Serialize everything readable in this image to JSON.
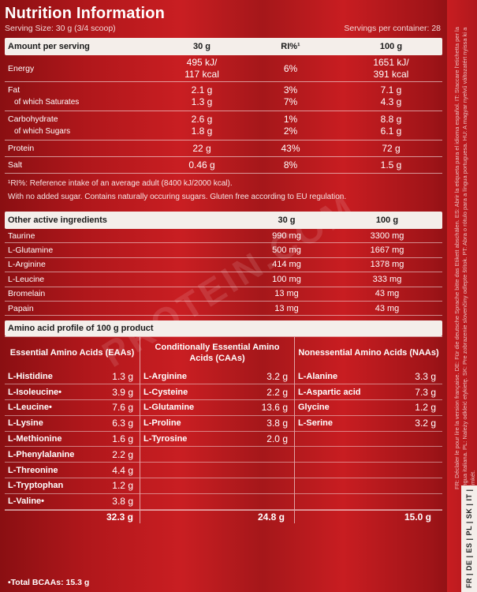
{
  "title": "Nutrition Information",
  "serving_size": "Serving Size: 30 g (3/4 scoop)",
  "servings_per_container": "Servings per container: 28",
  "nutrition": {
    "headers": [
      "Amount per serving",
      "30 g",
      "RI%¹",
      "100 g"
    ],
    "rows": [
      {
        "name": "Energy",
        "v30a": "495 kJ/",
        "v30b": "117 kcal",
        "ri": "6%",
        "v100a": "1651 kJ/",
        "v100b": "391 kcal"
      },
      {
        "name": "Fat",
        "v30": "2.1 g",
        "ri": "3%",
        "v100": "7.1 g",
        "sub": "of which Saturates",
        "sub30": "1.3 g",
        "subri": "7%",
        "sub100": "4.3 g"
      },
      {
        "name": "Carbohydrate",
        "v30": "2.6 g",
        "ri": "1%",
        "v100": "8.8 g",
        "sub": "of which Sugars",
        "sub30": "1.8 g",
        "subri": "2%",
        "sub100": "6.1 g"
      },
      {
        "name": "Protein",
        "v30": "22 g",
        "ri": "43%",
        "v100": "72 g"
      },
      {
        "name": "Salt",
        "v30": "0.46 g",
        "ri": "8%",
        "v100": "1.5 g"
      }
    ],
    "footnote1": "¹RI%: Reference intake of an average adult (8400 kJ/2000 kcal).",
    "footnote2": "With no added sugar. Contains naturally occuring sugars. Gluten free according to EU regulation."
  },
  "other": {
    "headers": [
      "Other active ingredients",
      "30 g",
      "100 g"
    ],
    "rows": [
      {
        "name": "Taurine",
        "v30": "990 mg",
        "v100": "3300 mg"
      },
      {
        "name": "L-Glutamine",
        "v30": "500 mg",
        "v100": "1667 mg"
      },
      {
        "name": "L-Arginine",
        "v30": "414 mg",
        "v100": "1378 mg"
      },
      {
        "name": "L-Leucine",
        "v30": "100 mg",
        "v100": "333 mg"
      },
      {
        "name": "Bromelain",
        "v30": "13 mg",
        "v100": "43 mg"
      },
      {
        "name": "Papain",
        "v30": "13 mg",
        "v100": "43 mg"
      }
    ]
  },
  "amino": {
    "title": "Amino acid profile of 100 g product",
    "essential": {
      "header": "Essential Amino Acids (EAAs)",
      "rows": [
        {
          "name": "L-Histidine",
          "v": "1.3 g"
        },
        {
          "name": "L-Isoleucine•",
          "v": "3.9 g"
        },
        {
          "name": "L-Leucine•",
          "v": "7.6 g"
        },
        {
          "name": "L-Lysine",
          "v": "6.3 g"
        },
        {
          "name": "L-Methionine",
          "v": "1.6 g"
        },
        {
          "name": "L-Phenylalanine",
          "v": "2.2 g"
        },
        {
          "name": "L-Threonine",
          "v": "4.4 g"
        },
        {
          "name": "L-Tryptophan",
          "v": "1.2 g"
        },
        {
          "name": "L-Valine•",
          "v": "3.8 g"
        }
      ],
      "total": "32.3 g"
    },
    "conditional": {
      "header": "Conditionally Essential Amino Acids (CAAs)",
      "rows": [
        {
          "name": "L-Arginine",
          "v": "3.2 g"
        },
        {
          "name": "L-Cysteine",
          "v": "2.2 g"
        },
        {
          "name": "L-Glutamine",
          "v": "13.6 g"
        },
        {
          "name": "L-Proline",
          "v": "3.8 g"
        },
        {
          "name": "L-Tyrosine",
          "v": "2.0 g"
        }
      ],
      "total": "24.8 g"
    },
    "nonessential": {
      "header": "Nonessential Amino Acids (NAAs)",
      "rows": [
        {
          "name": "L-Alanine",
          "v": "3.3 g"
        },
        {
          "name": "L-Aspartic acid",
          "v": "7.3 g"
        },
        {
          "name": "Glycine",
          "v": "1.2 g"
        },
        {
          "name": "L-Serine",
          "v": "3.2 g"
        }
      ],
      "total": "15.0 g"
    },
    "bcaa_total": "•Total BCAAs: 15.3 g"
  },
  "side_text": "FR: Déclaler le pour lire la version française. DE: Für die deutsche Sprache bitte das Etikett abschälen. ES: Abrir la etiqueta para el idioma español. IT: Staccare l'etichetta per la lingua italiana. PL: Należy odkleić etykietę. SK: Pre zobrazenie slovenčiny odlepte štítok. PT: Abra o rótulo para a língua portuguesa. HU: A magyar nyelvű változatért nyissa ki a címkét.",
  "lang_codes": "FR | DE | ES | PL | SK | IT | PT | SE | HU",
  "watermark": "PROTEIN.COM",
  "colors": {
    "background": "#b5191d",
    "header_bg": "#f4eeea",
    "text": "#ffffff"
  }
}
